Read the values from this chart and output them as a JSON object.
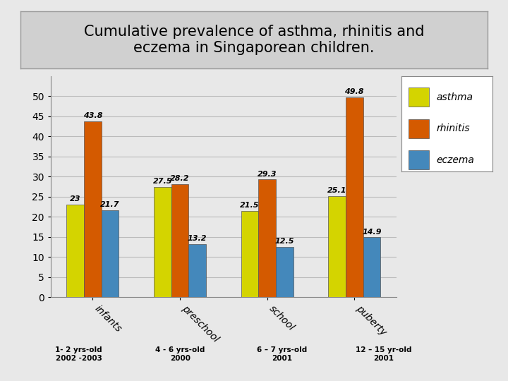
{
  "title": "Cumulative prevalence of asthma, rhinitis and\neczema in Singaporean children.",
  "groups": [
    "infants",
    "preschool",
    "school",
    "puberty"
  ],
  "sublabels": [
    "1- 2 yrs-old\n2002 -2003",
    "4 - 6 yrs-old\n2000",
    "6 – 7 yrs-old\n2001",
    "12 – 15 yr-old\n2001"
  ],
  "series": {
    "asthma": [
      23.0,
      27.5,
      21.5,
      25.1
    ],
    "rhinitis": [
      43.8,
      28.2,
      29.3,
      49.8
    ],
    "eczema": [
      21.7,
      13.2,
      12.5,
      14.9
    ]
  },
  "colors": {
    "asthma": "#d4d400",
    "rhinitis": "#d45a00",
    "eczema": "#4488bb"
  },
  "ylim": [
    0,
    55
  ],
  "yticks": [
    0,
    5,
    10,
    15,
    20,
    25,
    30,
    35,
    40,
    45,
    50
  ],
  "bar_width": 0.2,
  "value_fontsize": 8.0,
  "legend_fontsize": 10,
  "title_fontsize": 15,
  "tick_label_fontsize": 10,
  "sublabel_fontsize": 7.5,
  "background_color": "#e8e8e8",
  "plot_bg_color": "#e8e8e8",
  "title_box_color": "#d0d0d0",
  "grid_color": "#bbbbbb"
}
